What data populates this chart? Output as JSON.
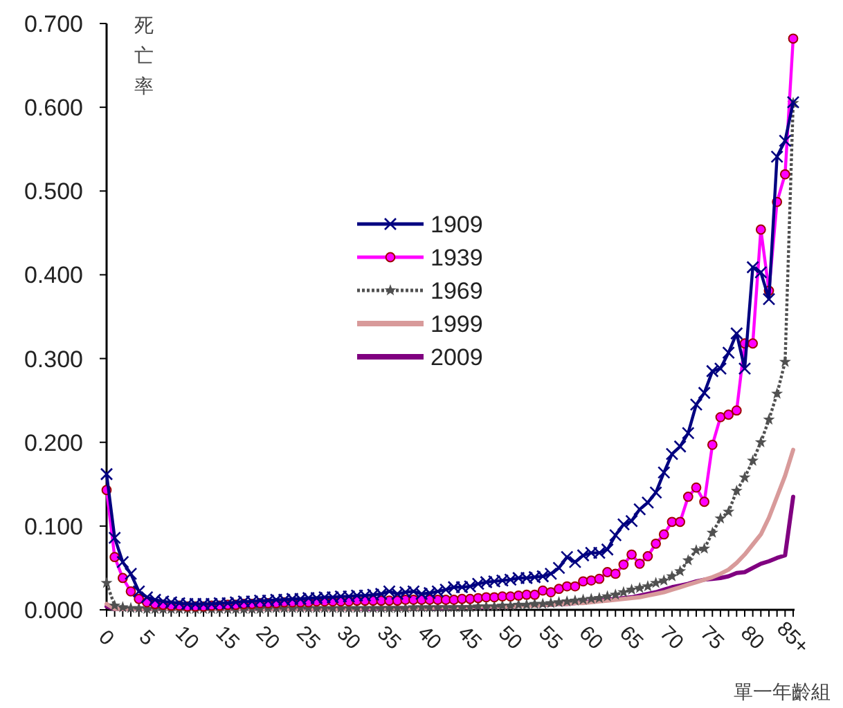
{
  "chart_data": {
    "type": "line",
    "ylabel": "死亡率",
    "xlabel": "單一年齡組",
    "categories": [
      "0",
      null,
      null,
      null,
      null,
      "5",
      null,
      null,
      null,
      null,
      "10",
      null,
      null,
      null,
      null,
      "15",
      null,
      null,
      null,
      null,
      "20",
      null,
      null,
      null,
      null,
      "25",
      null,
      null,
      null,
      null,
      "30",
      null,
      null,
      null,
      null,
      "35",
      null,
      null,
      null,
      null,
      "40",
      null,
      null,
      null,
      null,
      "45",
      null,
      null,
      null,
      null,
      "50",
      null,
      null,
      null,
      null,
      "55",
      null,
      null,
      null,
      null,
      "60",
      null,
      null,
      null,
      null,
      "65",
      null,
      null,
      null,
      null,
      "70",
      null,
      null,
      null,
      null,
      "75",
      null,
      null,
      null,
      null,
      "80",
      null,
      null,
      null,
      null,
      "85+"
    ],
    "ylim": [
      0,
      0.7
    ],
    "yticks": [
      {
        "value": 0,
        "label": "0.000"
      },
      {
        "value": 0.1,
        "label": "0.100"
      },
      {
        "value": 0.2,
        "label": "0.200"
      },
      {
        "value": 0.3,
        "label": "0.300"
      },
      {
        "value": 0.4,
        "label": "0.400"
      },
      {
        "value": 0.5,
        "label": "0.500"
      },
      {
        "value": 0.6,
        "label": "0.600"
      },
      {
        "value": 0.7,
        "label": "0.700"
      }
    ],
    "legend": "center",
    "grid": false,
    "series": [
      {
        "name": "1909",
        "color": "#000080",
        "marker": "cross",
        "line_style": "solid",
        "values": [
          0.162,
          0.086,
          0.057,
          0.043,
          0.022,
          0.015,
          0.012,
          0.01,
          0.009,
          0.008,
          0.007,
          0.007,
          0.007,
          0.007,
          0.008,
          0.008,
          0.009,
          0.01,
          0.01,
          0.011,
          0.011,
          0.012,
          0.012,
          0.013,
          0.013,
          0.014,
          0.014,
          0.015,
          0.015,
          0.016,
          0.016,
          0.017,
          0.017,
          0.018,
          0.019,
          0.022,
          0.019,
          0.021,
          0.022,
          0.019,
          0.02,
          0.022,
          0.024,
          0.027,
          0.027,
          0.028,
          0.031,
          0.033,
          0.034,
          0.035,
          0.036,
          0.038,
          0.038,
          0.039,
          0.04,
          0.043,
          0.05,
          0.063,
          0.057,
          0.065,
          0.068,
          0.068,
          0.072,
          0.089,
          0.102,
          0.106,
          0.12,
          0.128,
          0.14,
          0.164,
          0.186,
          0.195,
          0.211,
          0.245,
          0.259,
          0.285,
          0.288,
          0.307,
          0.33,
          0.288,
          0.409,
          0.403,
          0.371,
          0.541,
          0.56,
          0.606
        ]
      },
      {
        "name": "1939",
        "color": "#ff00ff",
        "marker": "circle",
        "line_style": "solid",
        "values": [
          0.143,
          0.063,
          0.038,
          0.022,
          0.013,
          0.009,
          0.007,
          0.006,
          0.005,
          0.005,
          0.004,
          0.004,
          0.004,
          0.005,
          0.005,
          0.006,
          0.006,
          0.007,
          0.007,
          0.008,
          0.008,
          0.008,
          0.009,
          0.009,
          0.009,
          0.009,
          0.01,
          0.01,
          0.01,
          0.01,
          0.01,
          0.011,
          0.011,
          0.011,
          0.011,
          0.011,
          0.011,
          0.012,
          0.012,
          0.012,
          0.012,
          0.012,
          0.012,
          0.012,
          0.013,
          0.013,
          0.014,
          0.015,
          0.015,
          0.016,
          0.016,
          0.017,
          0.018,
          0.018,
          0.023,
          0.021,
          0.025,
          0.028,
          0.028,
          0.034,
          0.035,
          0.037,
          0.045,
          0.043,
          0.054,
          0.066,
          0.055,
          0.064,
          0.079,
          0.09,
          0.105,
          0.105,
          0.135,
          0.146,
          0.129,
          0.197,
          0.23,
          0.233,
          0.238,
          0.318,
          0.318,
          0.454,
          0.381,
          0.487,
          0.52,
          0.682
        ]
      },
      {
        "name": "1969",
        "color": "#505050",
        "marker": "star",
        "line_style": "dotted",
        "values": [
          0.032,
          0.005,
          0.003,
          0.002,
          0.002,
          0.001,
          0.001,
          0.001,
          0.001,
          0.001,
          0.001,
          0.001,
          0.001,
          0.001,
          0.001,
          0.001,
          0.001,
          0.001,
          0.001,
          0.001,
          0.002,
          0.002,
          0.002,
          0.002,
          0.002,
          0.002,
          0.002,
          0.002,
          0.002,
          0.002,
          0.002,
          0.002,
          0.002,
          0.002,
          0.002,
          0.002,
          0.002,
          0.002,
          0.003,
          0.003,
          0.003,
          0.003,
          0.003,
          0.003,
          0.003,
          0.003,
          0.004,
          0.004,
          0.004,
          0.005,
          0.005,
          0.006,
          0.006,
          0.007,
          0.007,
          0.008,
          0.009,
          0.01,
          0.011,
          0.012,
          0.013,
          0.014,
          0.016,
          0.018,
          0.021,
          0.024,
          0.026,
          0.028,
          0.032,
          0.035,
          0.04,
          0.046,
          0.059,
          0.071,
          0.073,
          0.092,
          0.109,
          0.117,
          0.142,
          0.158,
          0.178,
          0.2,
          0.227,
          0.258,
          0.296,
          0.605
        ]
      },
      {
        "name": "1999",
        "color": "#d89a9a",
        "marker": "none",
        "line_style": "solid",
        "values": [
          0.007,
          0.001,
          0.001,
          0.001,
          0.001,
          0.001,
          0.001,
          0.001,
          0.001,
          0.001,
          0.001,
          0.001,
          0.001,
          0.001,
          0.001,
          0.001,
          0.001,
          0.001,
          0.001,
          0.001,
          0.001,
          0.001,
          0.001,
          0.001,
          0.001,
          0.001,
          0.001,
          0.001,
          0.001,
          0.001,
          0.001,
          0.001,
          0.002,
          0.002,
          0.002,
          0.002,
          0.002,
          0.002,
          0.002,
          0.002,
          0.002,
          0.003,
          0.003,
          0.003,
          0.003,
          0.003,
          0.004,
          0.004,
          0.004,
          0.004,
          0.004,
          0.005,
          0.005,
          0.005,
          0.006,
          0.006,
          0.007,
          0.007,
          0.008,
          0.008,
          0.009,
          0.01,
          0.011,
          0.012,
          0.013,
          0.014,
          0.015,
          0.017,
          0.019,
          0.021,
          0.024,
          0.027,
          0.03,
          0.033,
          0.036,
          0.039,
          0.043,
          0.048,
          0.056,
          0.066,
          0.078,
          0.09,
          0.11,
          0.135,
          0.16,
          0.191
        ]
      },
      {
        "name": "2009",
        "color": "#800080",
        "marker": "none",
        "line_style": "solid",
        "values": [
          0.004,
          0.001,
          0.001,
          0.001,
          0.001,
          0.001,
          0.001,
          0.001,
          0.001,
          0.001,
          0.001,
          0.001,
          0.001,
          0.001,
          0.001,
          0.001,
          0.001,
          0.001,
          0.001,
          0.001,
          0.001,
          0.001,
          0.001,
          0.001,
          0.001,
          0.001,
          0.001,
          0.001,
          0.001,
          0.001,
          0.001,
          0.001,
          0.001,
          0.001,
          0.002,
          0.002,
          0.002,
          0.002,
          0.002,
          0.002,
          0.002,
          0.002,
          0.002,
          0.003,
          0.003,
          0.003,
          0.003,
          0.003,
          0.004,
          0.004,
          0.004,
          0.005,
          0.005,
          0.005,
          0.006,
          0.006,
          0.007,
          0.007,
          0.008,
          0.009,
          0.01,
          0.011,
          0.012,
          0.013,
          0.014,
          0.015,
          0.017,
          0.019,
          0.021,
          0.024,
          0.027,
          0.029,
          0.031,
          0.034,
          0.036,
          0.037,
          0.038,
          0.04,
          0.044,
          0.045,
          0.05,
          0.055,
          0.058,
          0.062,
          0.065,
          0.135
        ]
      }
    ]
  }
}
